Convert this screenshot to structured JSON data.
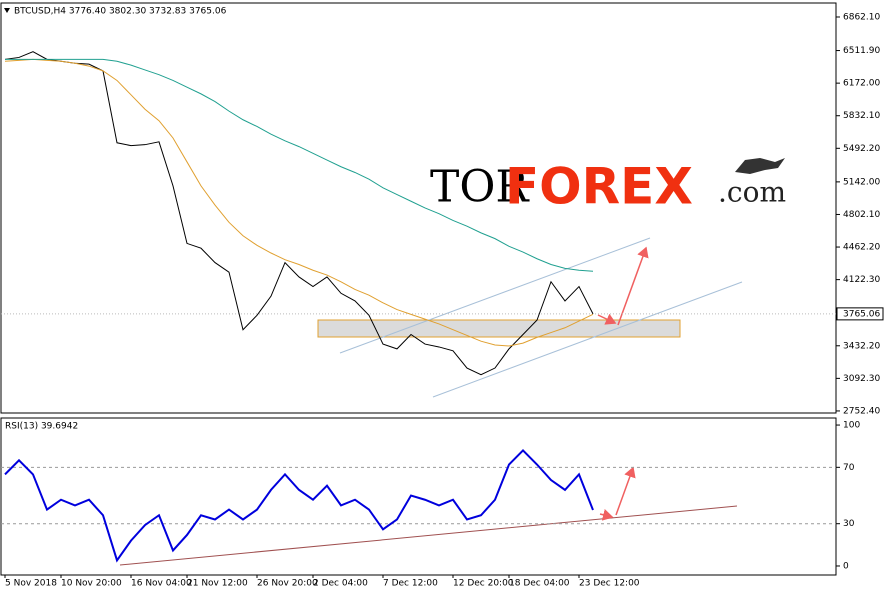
{
  "logo": [
    "TOR",
    "FOREX",
    ".com"
  ],
  "chart_data": [
    {
      "type": "line",
      "title": "BTCUSD,H4 3776.40 3802.30 3732.83 3765.06",
      "categories": [
        "5 Nov 2018",
        null,
        null,
        null,
        "10 Nov 20:00",
        null,
        null,
        null,
        null,
        "16 Nov 04:00",
        null,
        null,
        null,
        "21 Nov 12:00",
        null,
        null,
        null,
        null,
        "26 Nov 20:00",
        null,
        null,
        null,
        "2 Dec 04:00",
        null,
        null,
        null,
        null,
        "7 Dec 12:00",
        null,
        null,
        null,
        null,
        "12 Dec 20:00",
        null,
        null,
        null,
        "18 Dec 04:00",
        null,
        null,
        null,
        null,
        "23 Dec 12:00",
        null
      ],
      "series": [
        {
          "color": "#000000",
          "values": [
            6420,
            6440,
            6500,
            6420,
            6400,
            6380,
            6370,
            6300,
            5550,
            5520,
            5530,
            5560,
            5100,
            4500,
            4450,
            4300,
            4200,
            3600,
            3750,
            3950,
            4300,
            4150,
            4050,
            4150,
            3980,
            3900,
            3750,
            3450,
            3400,
            3550,
            3450,
            3420,
            3380,
            3200,
            3130,
            3200,
            3400,
            3550,
            3700,
            4100,
            3900,
            4050,
            3765
          ]
        },
        {
          "color": "#e0a030",
          "values": [
            6400,
            6410,
            6420,
            6410,
            6400,
            6380,
            6350,
            6300,
            6200,
            6050,
            5900,
            5780,
            5600,
            5350,
            5100,
            4900,
            4720,
            4580,
            4480,
            4400,
            4330,
            4280,
            4220,
            4170,
            4100,
            4020,
            3960,
            3880,
            3810,
            3760,
            3710,
            3660,
            3600,
            3540,
            3480,
            3440,
            3430,
            3460,
            3520,
            3570,
            3620,
            3690,
            3760
          ]
        },
        {
          "color": "#20a090",
          "values": [
            6420,
            6420,
            6420,
            6420,
            6420,
            6420,
            6420,
            6420,
            6400,
            6360,
            6310,
            6260,
            6200,
            6130,
            6060,
            5980,
            5880,
            5790,
            5720,
            5640,
            5570,
            5510,
            5440,
            5370,
            5300,
            5240,
            5170,
            5080,
            5010,
            4940,
            4870,
            4810,
            4740,
            4680,
            4610,
            4550,
            4470,
            4410,
            4340,
            4280,
            4240,
            4220,
            4210
          ]
        }
      ],
      "last_price": 3765.06,
      "ylim": [
        2731,
        7008
      ],
      "yticks": [
        {
          "value": 6862.1,
          "label": "6862.10"
        },
        {
          "value": 6511.9,
          "label": "6511.90"
        },
        {
          "value": 6172.0,
          "label": "6172.00"
        },
        {
          "value": 5832.1,
          "label": "5832.10"
        },
        {
          "value": 5492.2,
          "label": "5492.20"
        },
        {
          "value": 5142.0,
          "label": "5142.00"
        },
        {
          "value": 4802.1,
          "label": "4802.10"
        },
        {
          "value": 4462.2,
          "label": "4462.20"
        },
        {
          "value": 4122.3,
          "label": "4122.30"
        },
        {
          "value": 3432.2,
          "label": "3432.20"
        },
        {
          "value": 3092.3,
          "label": "3092.30"
        },
        {
          "value": 2752.4,
          "label": "2752.40"
        }
      ]
    },
    {
      "type": "line",
      "title": "RSI(13) 39.6942",
      "series": [
        {
          "color": "#0000dd",
          "values": [
            65,
            75,
            65,
            40,
            47,
            43,
            47,
            36,
            4,
            18,
            29,
            36,
            11,
            22,
            36,
            33,
            40,
            33,
            40,
            54,
            65,
            54,
            47,
            57,
            43,
            47,
            40,
            26,
            33,
            50,
            47,
            43,
            47,
            33,
            36,
            47,
            72,
            82,
            72,
            61,
            54,
            65,
            39.6942
          ]
        }
      ],
      "ylim": [
        -6.4,
        105
      ],
      "yticks": [
        100,
        70,
        30,
        0
      ],
      "dashed_grid": [
        70,
        30
      ]
    }
  ]
}
